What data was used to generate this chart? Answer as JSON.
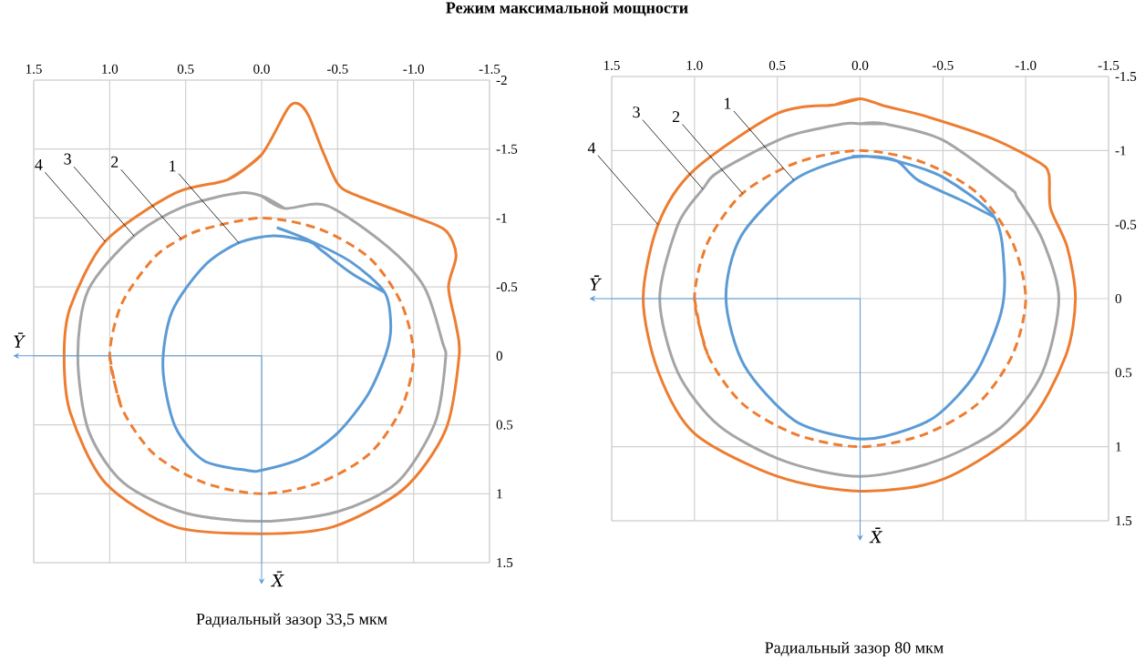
{
  "chart_data": [
    {
      "type": "line",
      "title": "Режим максимальной мощности",
      "xlabel": "Ȳ",
      "xlim": [
        1.5,
        -1.5
      ],
      "ylim": [
        1.5,
        -2
      ],
      "grid": true,
      "xticks": [
        1.5,
        {
          "value": 1,
          "label": "1.0"
        },
        0.5,
        {
          "value": 0,
          "label": "0.0"
        },
        -0.5,
        {
          "value": -1,
          "label": "-1.0"
        },
        -1.5
      ],
      "yticks": [
        -2,
        -1.5,
        -1,
        -0.5,
        0,
        0.5,
        1,
        1.5
      ],
      "series": [
        {
          "color": "#5b9bd5",
          "x": [
            -0.1,
            -0.31,
            -0.59,
            -0.81,
            -0.85,
            -0.82,
            -0.7,
            -0.5,
            -0.27,
            0,
            0.1,
            0.38,
            0.57,
            0.65,
            0.59,
            0.38,
            0.15,
            -0.08,
            -0.31,
            -0.4,
            -0.59,
            -0.81
          ],
          "values": [
            -0.93,
            -0.84,
            -0.68,
            -0.46,
            -0.22,
            -0.02,
            0.28,
            0.56,
            0.74,
            0.83,
            0.83,
            0.76,
            0.51,
            0.08,
            -0.32,
            -0.65,
            -0.82,
            -0.87,
            -0.83,
            -0.76,
            -0.6,
            -0.46
          ]
        },
        {
          "color": "#ed7d31",
          "line_style": "dashed",
          "x": [
            1,
            0.92,
            0.71,
            0.38,
            0,
            -0.38,
            -0.71,
            -0.92,
            -1,
            -0.92,
            -0.71,
            -0.38,
            0,
            0.38,
            0.53,
            0.71,
            0.92,
            1,
            0.92
          ],
          "values": [
            0,
            0.38,
            0.71,
            0.92,
            1,
            0.92,
            0.71,
            0.38,
            0,
            -0.38,
            -0.71,
            -0.92,
            -1,
            -0.92,
            -0.85,
            -0.71,
            -0.38,
            0,
            0.38
          ]
        },
        {
          "color": "#a5a5a5",
          "x": [
            0,
            -0.15,
            -0.43,
            -0.82,
            -1.07,
            -1.19,
            -1.21,
            -1.14,
            -0.89,
            -0.5,
            0,
            0.5,
            0.91,
            1.14,
            1.21,
            1.14,
            0.84,
            0.52,
            0.16,
            0,
            -0.15
          ],
          "values": [
            -1.16,
            -1.07,
            -1.09,
            -0.8,
            -0.5,
            -0.1,
            0.03,
            0.49,
            0.92,
            1.13,
            1.2,
            1.14,
            0.92,
            0.54,
            0,
            -0.48,
            -0.87,
            -1.08,
            -1.18,
            -1.16,
            -1.07
          ]
        },
        {
          "color": "#ed7d31",
          "x": [
            0,
            0.22,
            0.57,
            1.03,
            1.26,
            1.3,
            1.26,
            1.03,
            0.57,
            0,
            -0.47,
            -0.93,
            -1.21,
            -1.3,
            -1.28,
            -1.23,
            -1.28,
            -1.21,
            -1.0,
            -0.61,
            -0.5,
            -0.4,
            -0.31,
            -0.24,
            -0.17,
            0,
            0.22
          ],
          "values": [
            -1.46,
            -1.28,
            -1.18,
            -0.83,
            -0.35,
            0,
            0.41,
            0.92,
            1.24,
            1.29,
            1.24,
            0.97,
            0.54,
            0,
            -0.22,
            -0.5,
            -0.73,
            -0.91,
            -1.01,
            -1.17,
            -1.25,
            -1.49,
            -1.74,
            -1.83,
            -1.79,
            -1.46,
            -1.28
          ]
        }
      ],
      "annotations": [
        {
          "text": "1",
          "x": 0.15,
          "y": -0.82
        },
        {
          "text": "2",
          "x": 0.53,
          "y": -0.85
        },
        {
          "text": "3",
          "x": 0.84,
          "y": -0.87
        },
        {
          "text": "4",
          "x": 1.03,
          "y": -0.83
        },
        "X̄",
        "Радиальный зазор 33,5 мкм"
      ]
    },
    {
      "type": "line",
      "xlabel": "Ȳ",
      "xlim": [
        1.5,
        -1.5
      ],
      "ylim": [
        1.5,
        -1.5
      ],
      "grid": true,
      "xticks": [
        1.5,
        {
          "value": 1,
          "label": "1.0"
        },
        0.5,
        {
          "value": 0,
          "label": "0.0"
        },
        -0.5,
        {
          "value": -1,
          "label": "-1.0"
        },
        -1.5
      ],
      "yticks": [
        -1.5,
        -1,
        -0.5,
        0,
        0.5,
        1,
        1.5
      ],
      "series": [
        {
          "color": "#5b9bd5",
          "x": [
            0.05,
            -0.05,
            -0.22,
            -0.5,
            -0.81,
            -0.87,
            -0.85,
            -0.7,
            -0.45,
            -0.15,
            0.06,
            0.4,
            0.7,
            0.81,
            0.72,
            0.4,
            0.1,
            -0.05,
            -0.22,
            -0.35,
            -0.6,
            -0.81
          ],
          "values": [
            -0.96,
            -0.96,
            -0.93,
            -0.82,
            -0.55,
            -0.2,
            0.1,
            0.5,
            0.8,
            0.93,
            0.94,
            0.82,
            0.45,
            0,
            -0.42,
            -0.8,
            -0.94,
            -0.96,
            -0.93,
            -0.8,
            -0.67,
            -0.55
          ]
        },
        {
          "color": "#ed7d31",
          "line_style": "dashed",
          "x": [
            1,
            0.92,
            0.71,
            0.38,
            0,
            -0.38,
            -0.71,
            -0.92,
            -1,
            -0.92,
            -0.71,
            -0.38,
            0,
            0.38,
            0.71,
            0.92,
            1,
            0.92
          ],
          "values": [
            0,
            0.38,
            0.71,
            0.92,
            1,
            0.92,
            0.71,
            0.38,
            0,
            -0.38,
            -0.71,
            -0.92,
            -1,
            -0.92,
            -0.71,
            -0.38,
            0,
            0.38
          ]
        },
        {
          "color": "#a5a5a5",
          "x": [
            0,
            -0.15,
            -0.5,
            -0.9,
            -0.95,
            -1.1,
            -1.2,
            -1.1,
            -0.85,
            -0.45,
            0,
            0.45,
            0.85,
            1.1,
            1.21,
            1.1,
            0.95,
            0.85,
            0.45,
            0.1,
            0,
            -0.15
          ],
          "values": [
            -1.18,
            -1.18,
            -1.07,
            -0.75,
            -0.68,
            -0.4,
            0,
            0.5,
            0.87,
            1.1,
            1.2,
            1.1,
            0.86,
            0.5,
            0,
            -0.5,
            -0.74,
            -0.86,
            -1.09,
            -1.18,
            -1.18,
            -1.18
          ]
        },
        {
          "color": "#ed7d31",
          "x": [
            0,
            0.15,
            0.5,
            1.01,
            1.22,
            1.31,
            1.22,
            1.0,
            0.5,
            0,
            -0.5,
            -1.0,
            -1.24,
            -1.3,
            -1.25,
            -1.15,
            -1.14,
            -1.08,
            -0.8,
            -0.4,
            -0.15,
            0,
            0.15
          ],
          "values": [
            -1.35,
            -1.31,
            -1.25,
            -0.86,
            -0.5,
            0,
            0.49,
            0.91,
            1.2,
            1.3,
            1.22,
            0.86,
            0.39,
            0,
            -0.35,
            -0.61,
            -0.84,
            -0.92,
            -1.08,
            -1.23,
            -1.3,
            -1.35,
            -1.31
          ]
        }
      ],
      "annotations": [
        {
          "text": "1",
          "x": 0.4,
          "y": -0.8
        },
        {
          "text": "2",
          "x": 0.71,
          "y": -0.71
        },
        {
          "text": "3",
          "x": 0.95,
          "y": -0.74
        },
        {
          "text": "4",
          "x": 1.22,
          "y": -0.5
        },
        "X̄",
        "Радиальный зазор 80 мкм"
      ]
    }
  ]
}
